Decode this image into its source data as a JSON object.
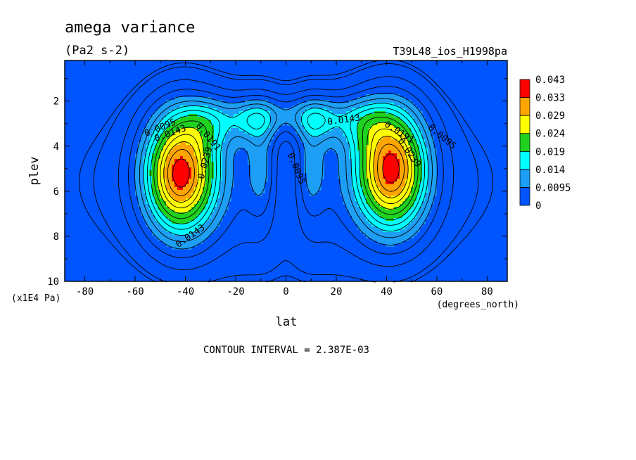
{
  "chart_data": {
    "type": "heatmap",
    "title": "amega variance",
    "units": "(Pa2 s-2)",
    "run_label": "T39L48_ios_H1998pa",
    "xlabel": "lat",
    "xunits": "(degrees_north)",
    "ylabel": "plev",
    "yunits": "(x1E4 Pa)",
    "xlim": [
      -88,
      88
    ],
    "ylim": [
      10,
      0.2
    ],
    "x_ticks": [
      -80,
      -60,
      -40,
      -20,
      0,
      20,
      40,
      60,
      80
    ],
    "x_tick_labels": [
      "-80",
      "-60",
      "-40",
      "-20",
      "0",
      "20",
      "40",
      "60",
      "80"
    ],
    "y_ticks": [
      2,
      4,
      6,
      8,
      10
    ],
    "y_tick_labels": [
      "2",
      "4",
      "6",
      "8",
      "10"
    ],
    "colorbar": {
      "levels": [
        "0",
        "0.0095",
        "0.014",
        "0.019",
        "0.024",
        "0.029",
        "0.033",
        "0.043"
      ],
      "colors": [
        "#0055ff",
        "#1c9ff4",
        "#00ffff",
        "#1ed21e",
        "#ffff00",
        "#ffa500",
        "#ff0000"
      ]
    },
    "contour_interval_text": "CONTOUR INTERVAL = 2.387E-03",
    "contour_labels": [
      {
        "text": "0.0095",
        "x": -50,
        "y": 3.2,
        "rot": -22
      },
      {
        "text": "0.0143",
        "x": -46,
        "y": 3.45,
        "rot": -20
      },
      {
        "text": "0.0191",
        "x": -31,
        "y": 3.6,
        "rot": 50
      },
      {
        "text": "0.0239",
        "x": -32,
        "y": 4.75,
        "rot": -75
      },
      {
        "text": "0.0143",
        "x": -38,
        "y": 8.0,
        "rot": -35
      },
      {
        "text": "0.0143",
        "x": 23,
        "y": 2.85,
        "rot": -8
      },
      {
        "text": "0.0191",
        "x": 45,
        "y": 3.4,
        "rot": 32
      },
      {
        "text": "0.0239",
        "x": 49,
        "y": 4.3,
        "rot": 55
      },
      {
        "text": "0.0095",
        "x": 62,
        "y": 3.6,
        "rot": 40
      },
      {
        "text": "0.0095",
        "x": 4,
        "y": 5.0,
        "rot": 68
      }
    ]
  }
}
